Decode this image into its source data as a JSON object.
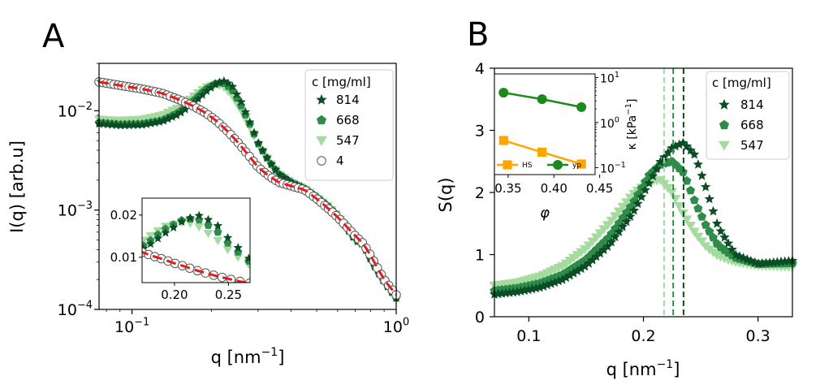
{
  "colors": {
    "c814": "#0b4d24",
    "c668": "#2e8b4a",
    "c547": "#a6dba0",
    "c4_edge": "#555555",
    "fit": "#e41a1c",
    "fit_band": "#8a8a8a",
    "hs": "#ffa500",
    "yp": "#1b8a1b"
  },
  "chart_data": [
    {
      "panel": "A",
      "panel_label": "A",
      "type": "line",
      "xscale": "log",
      "yscale": "log",
      "xlim": [
        0.075,
        1.0
      ],
      "ylim": [
        0.0001,
        0.03
      ],
      "xlabel": "q  [nm",
      "xlabel_sup": "−1",
      "xlabel_end": "]",
      "ylabel": "I(q) [arb.u]",
      "x_ticks": [
        {
          "value": 0.1,
          "base": "10",
          "exp": "−1"
        },
        {
          "value": 1.0,
          "base": "10",
          "exp": "0"
        }
      ],
      "y_ticks": [
        {
          "value": 0.0001,
          "base": "10",
          "exp": "−4"
        },
        {
          "value": 0.001,
          "base": "10",
          "exp": "−3"
        },
        {
          "value": 0.01,
          "base": "10",
          "exp": "−2"
        }
      ],
      "legend_title": "c [mg/ml]",
      "legend_position": "top-right",
      "series": [
        {
          "name": "814",
          "marker": "star",
          "color_key": "c814",
          "x": [
            0.075,
            0.09,
            0.11,
            0.13,
            0.15,
            0.17,
            0.19,
            0.21,
            0.225,
            0.24,
            0.26,
            0.28,
            0.3,
            0.33,
            0.36,
            0.4,
            0.45,
            0.5,
            0.55,
            0.6,
            0.65,
            0.7,
            0.75,
            0.8,
            0.85,
            0.9,
            1.0
          ],
          "y": [
            0.0074,
            0.0071,
            0.0072,
            0.0078,
            0.0092,
            0.0118,
            0.0155,
            0.019,
            0.02,
            0.0175,
            0.012,
            0.0075,
            0.0048,
            0.0031,
            0.0023,
            0.0019,
            0.00165,
            0.00135,
            0.0011,
            0.00088,
            0.00066,
            0.0005,
            0.00045,
            0.00032,
            0.00024,
            0.00019,
            0.00013
          ]
        },
        {
          "name": "668",
          "marker": "pentagon",
          "color_key": "c668",
          "x": [
            0.075,
            0.09,
            0.11,
            0.13,
            0.15,
            0.17,
            0.19,
            0.21,
            0.225,
            0.24,
            0.26,
            0.28,
            0.3,
            0.33,
            0.36,
            0.4,
            0.45,
            0.5,
            0.55,
            0.6,
            0.65,
            0.7,
            0.75,
            0.8,
            0.85,
            0.9,
            1.0
          ],
          "y": [
            0.0076,
            0.0073,
            0.0074,
            0.008,
            0.0096,
            0.0125,
            0.0165,
            0.0192,
            0.0188,
            0.016,
            0.011,
            0.0072,
            0.0047,
            0.0031,
            0.0023,
            0.0019,
            0.00165,
            0.00135,
            0.0011,
            0.00088,
            0.00066,
            0.0005,
            0.00045,
            0.00032,
            0.00024,
            0.00019,
            0.00013
          ]
        },
        {
          "name": "547",
          "marker": "triangle-down",
          "color_key": "c547",
          "x": [
            0.075,
            0.09,
            0.11,
            0.13,
            0.15,
            0.17,
            0.19,
            0.21,
            0.225,
            0.24,
            0.26,
            0.28,
            0.3,
            0.33,
            0.36,
            0.4,
            0.45,
            0.5,
            0.55,
            0.6,
            0.65,
            0.7,
            0.75,
            0.8,
            0.85,
            0.9,
            1.0
          ],
          "y": [
            0.0082,
            0.008,
            0.0082,
            0.009,
            0.0108,
            0.0138,
            0.0172,
            0.0185,
            0.017,
            0.014,
            0.0098,
            0.0067,
            0.0046,
            0.0031,
            0.0023,
            0.0019,
            0.00165,
            0.00135,
            0.0011,
            0.00088,
            0.00066,
            0.0005,
            0.00045,
            0.00032,
            0.00024,
            0.00019,
            0.00013
          ]
        },
        {
          "name": "4",
          "marker": "circle-open",
          "color_key": "c4_edge",
          "x": [
            0.075,
            0.09,
            0.11,
            0.13,
            0.15,
            0.17,
            0.19,
            0.21,
            0.23,
            0.25,
            0.28,
            0.3,
            0.33,
            0.36,
            0.4,
            0.45,
            0.5,
            0.55,
            0.6,
            0.65,
            0.7,
            0.75,
            0.8,
            0.85,
            0.9,
            1.0
          ],
          "y": [
            0.0195,
            0.018,
            0.0165,
            0.015,
            0.013,
            0.0112,
            0.0095,
            0.0078,
            0.0062,
            0.0049,
            0.0034,
            0.0027,
            0.0022,
            0.0019,
            0.00175,
            0.0016,
            0.0013,
            0.00105,
            0.00085,
            0.00068,
            0.00055,
            0.00046,
            0.00035,
            0.00026,
            0.0002,
            0.00014
          ]
        }
      ],
      "inset": {
        "xlim": [
          0.17,
          0.27
        ],
        "ylim": [
          0.004,
          0.024
        ],
        "x_tick_labels": [
          "0.20",
          "0.25"
        ],
        "x_tick_values": [
          0.2,
          0.25
        ],
        "y_tick_labels": [
          "0.01",
          "0.02"
        ],
        "y_tick_values": [
          0.01,
          0.02
        ]
      }
    },
    {
      "panel": "B",
      "panel_label": "B",
      "type": "line",
      "xlim": [
        0.07,
        0.33
      ],
      "ylim": [
        0,
        4
      ],
      "xlabel": "q  [nm",
      "xlabel_sup": "−1",
      "xlabel_end": "]",
      "ylabel": "S(q)",
      "x_tick_labels": [
        "0.1",
        "0.2",
        "0.3"
      ],
      "x_tick_values": [
        0.1,
        0.2,
        0.3
      ],
      "y_tick_labels": [
        "0",
        "1",
        "2",
        "3",
        "4"
      ],
      "y_tick_values": [
        0,
        1,
        2,
        3,
        4
      ],
      "legend_title": "c [mg/ml]",
      "legend_position": "top-right",
      "peak_lines": [
        {
          "name": "547",
          "q": 0.218,
          "color_key": "c547"
        },
        {
          "name": "668",
          "q": 0.226,
          "color_key": "c668"
        },
        {
          "name": "814",
          "q": 0.235,
          "color_key": "c814"
        }
      ],
      "series": [
        {
          "name": "814",
          "marker": "star",
          "color_key": "c814",
          "x": [
            0.07,
            0.09,
            0.11,
            0.13,
            0.15,
            0.17,
            0.19,
            0.205,
            0.215,
            0.225,
            0.235,
            0.245,
            0.255,
            0.265,
            0.28,
            0.3,
            0.33
          ],
          "y": [
            0.36,
            0.4,
            0.47,
            0.6,
            0.82,
            1.15,
            1.65,
            2.15,
            2.5,
            2.72,
            2.8,
            2.6,
            2.05,
            1.45,
            1.0,
            0.85,
            0.9
          ]
        },
        {
          "name": "668",
          "marker": "pentagon",
          "color_key": "c668",
          "x": [
            0.07,
            0.09,
            0.11,
            0.13,
            0.15,
            0.17,
            0.19,
            0.205,
            0.215,
            0.225,
            0.235,
            0.245,
            0.255,
            0.265,
            0.28,
            0.3,
            0.33
          ],
          "y": [
            0.42,
            0.46,
            0.54,
            0.68,
            0.92,
            1.28,
            1.8,
            2.28,
            2.45,
            2.5,
            2.32,
            1.85,
            1.45,
            1.15,
            0.95,
            0.85,
            0.86
          ]
        },
        {
          "name": "547",
          "marker": "triangle-down",
          "color_key": "c547",
          "x": [
            0.07,
            0.09,
            0.11,
            0.13,
            0.15,
            0.17,
            0.19,
            0.205,
            0.215,
            0.225,
            0.235,
            0.245,
            0.255,
            0.265,
            0.28,
            0.3,
            0.33
          ],
          "y": [
            0.5,
            0.55,
            0.65,
            0.82,
            1.1,
            1.5,
            1.95,
            2.18,
            2.2,
            2.0,
            1.65,
            1.35,
            1.12,
            0.98,
            0.88,
            0.82,
            0.8
          ]
        }
      ],
      "inset": {
        "xlabel": "φ",
        "ylabel_right": "κ [kPa",
        "ylabel_right_sup": "−1",
        "ylabel_right_end": "]",
        "xlim": [
          0.335,
          0.445
        ],
        "x_tick_labels": [
          "0.35",
          "0.40",
          "0.45"
        ],
        "x_tick_values": [
          0.35,
          0.4,
          0.45
        ],
        "y_right_ticks": [
          {
            "value": 0.1,
            "base": "10",
            "exp": "−1"
          },
          {
            "value": 1,
            "base": "10",
            "exp": "0"
          },
          {
            "value": 10,
            "base": "10",
            "exp": "1"
          }
        ],
        "ylim_log": [
          0.07,
          12
        ],
        "series": [
          {
            "name": "HS",
            "color_key": "hs",
            "marker": "square",
            "x": [
              0.345,
              0.387,
              0.43
            ],
            "y": [
              0.4,
              0.22,
              0.12
            ]
          },
          {
            "name": "yp",
            "color_key": "yp",
            "marker": "circle",
            "x": [
              0.345,
              0.387,
              0.43
            ],
            "y": [
              4.6,
              3.3,
              2.2
            ]
          }
        ]
      }
    }
  ]
}
